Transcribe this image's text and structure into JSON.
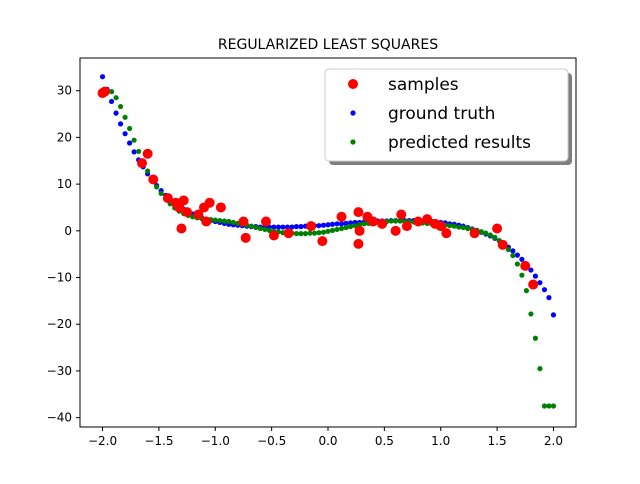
{
  "chart_data": {
    "type": "scatter",
    "title": "REGULARIZED LEAST SQUARES",
    "xlabel": "",
    "ylabel": "",
    "xlim": [
      -2.2,
      2.2
    ],
    "ylim": [
      -42,
      37
    ],
    "x_ticks": [
      -2.0,
      -1.5,
      -1.0,
      -0.5,
      0.0,
      0.5,
      1.0,
      1.5,
      2.0
    ],
    "x_tick_labels": [
      "−2.0",
      "−1.5",
      "−1.0",
      "−0.5",
      "0.0",
      "0.5",
      "1.0",
      "1.5",
      "2.0"
    ],
    "y_ticks": [
      -40,
      -30,
      -20,
      -10,
      0,
      10,
      20,
      30
    ],
    "y_tick_labels": [
      "−40",
      "−30",
      "−20",
      "−10",
      "0",
      "10",
      "20",
      "30"
    ],
    "grid": false,
    "legend": {
      "position": "top-right",
      "shadow": true
    },
    "series": [
      {
        "name": "samples",
        "color": "#ff0000",
        "marker": "large-dot",
        "x": [
          -2.0,
          -1.98,
          -1.65,
          -1.6,
          -1.55,
          -1.42,
          -1.35,
          -1.32,
          -1.28,
          -1.25,
          -1.3,
          -1.15,
          -1.1,
          -1.08,
          -1.05,
          -0.95,
          -0.75,
          -0.73,
          -0.55,
          -0.48,
          -0.35,
          -0.15,
          -0.05,
          0.12,
          0.27,
          0.28,
          0.27,
          0.35,
          0.4,
          0.48,
          0.6,
          0.65,
          0.7,
          0.8,
          0.88,
          0.95,
          1.0,
          1.05,
          1.3,
          1.5,
          1.55,
          1.75,
          1.82
        ],
        "y": [
          29.5,
          29.8,
          14.5,
          16.5,
          11.0,
          7.0,
          6.0,
          5.0,
          6.5,
          4.0,
          0.5,
          3.5,
          5.0,
          2.0,
          6.0,
          5.0,
          2.0,
          -1.5,
          2.0,
          -1.0,
          -0.5,
          1.0,
          -2.2,
          3.0,
          4.0,
          0.0,
          -2.8,
          3.0,
          2.0,
          1.5,
          0.0,
          3.5,
          1.0,
          2.0,
          2.5,
          1.5,
          1.0,
          -0.5,
          -0.5,
          0.5,
          -3.0,
          -7.5,
          -11.5
        ]
      },
      {
        "name": "ground truth",
        "color": "#0000ff",
        "marker": "small-dot",
        "x": [
          -2.0,
          -1.96,
          -1.92,
          -1.88,
          -1.84,
          -1.8,
          -1.76,
          -1.72,
          -1.68,
          -1.64,
          -1.6,
          -1.56,
          -1.52,
          -1.48,
          -1.44,
          -1.4,
          -1.36,
          -1.32,
          -1.28,
          -1.24,
          -1.2,
          -1.16,
          -1.12,
          -1.08,
          -1.04,
          -1.0,
          -0.96,
          -0.92,
          -0.88,
          -0.84,
          -0.8,
          -0.76,
          -0.72,
          -0.68,
          -0.64,
          -0.6,
          -0.56,
          -0.52,
          -0.48,
          -0.44,
          -0.4,
          -0.36,
          -0.32,
          -0.28,
          -0.24,
          -0.2,
          -0.16,
          -0.12,
          -0.08,
          -0.04,
          0.0,
          0.04,
          0.08,
          0.12,
          0.16,
          0.2,
          0.24,
          0.28,
          0.32,
          0.36,
          0.4,
          0.44,
          0.48,
          0.52,
          0.56,
          0.6,
          0.64,
          0.68,
          0.72,
          0.76,
          0.8,
          0.84,
          0.88,
          0.92,
          0.96,
          1.0,
          1.04,
          1.08,
          1.12,
          1.16,
          1.2,
          1.24,
          1.28,
          1.32,
          1.36,
          1.4,
          1.44,
          1.48,
          1.52,
          1.56,
          1.6,
          1.64,
          1.68,
          1.72,
          1.76,
          1.8,
          1.84,
          1.88,
          1.92,
          1.96,
          2.0
        ],
        "y": [
          33.0,
          30.3,
          27.7,
          25.2,
          22.9,
          20.8,
          18.8,
          16.9,
          15.2,
          13.7,
          12.2,
          10.9,
          9.7,
          8.6,
          7.6,
          6.7,
          5.9,
          5.2,
          4.6,
          4.1,
          3.6,
          3.2,
          2.8,
          2.5,
          2.2,
          2.0,
          1.8,
          1.6,
          1.4,
          1.3,
          1.2,
          1.1,
          1.0,
          0.9,
          0.9,
          0.8,
          0.8,
          0.8,
          0.8,
          0.8,
          0.8,
          0.8,
          0.8,
          0.9,
          0.9,
          1.0,
          1.0,
          1.1,
          1.1,
          1.2,
          1.3,
          1.4,
          1.5,
          1.5,
          1.6,
          1.7,
          1.8,
          1.8,
          1.9,
          2.0,
          2.0,
          2.1,
          2.1,
          2.1,
          2.2,
          2.2,
          2.2,
          2.2,
          2.2,
          2.2,
          2.2,
          2.1,
          2.1,
          2.0,
          1.9,
          1.8,
          1.7,
          1.5,
          1.4,
          1.2,
          1.0,
          0.7,
          0.4,
          0.1,
          -0.3,
          -0.7,
          -1.1,
          -1.6,
          -2.2,
          -2.8,
          -3.5,
          -4.3,
          -5.2,
          -6.1,
          -7.2,
          -8.4,
          -9.7,
          -11.1,
          -12.6,
          -14.3,
          -18.0
        ]
      },
      {
        "name": "predicted results",
        "color": "#008000",
        "marker": "small-dot",
        "x": [
          -2.0,
          -1.96,
          -1.92,
          -1.88,
          -1.84,
          -1.8,
          -1.76,
          -1.72,
          -1.68,
          -1.64,
          -1.6,
          -1.56,
          -1.52,
          -1.48,
          -1.44,
          -1.4,
          -1.36,
          -1.32,
          -1.28,
          -1.24,
          -1.2,
          -1.16,
          -1.12,
          -1.08,
          -1.04,
          -1.0,
          -0.96,
          -0.92,
          -0.88,
          -0.84,
          -0.8,
          -0.76,
          -0.72,
          -0.68,
          -0.64,
          -0.6,
          -0.56,
          -0.52,
          -0.48,
          -0.44,
          -0.4,
          -0.36,
          -0.32,
          -0.28,
          -0.24,
          -0.2,
          -0.16,
          -0.12,
          -0.08,
          -0.04,
          0.0,
          0.04,
          0.08,
          0.12,
          0.16,
          0.2,
          0.24,
          0.28,
          0.32,
          0.36,
          0.4,
          0.44,
          0.48,
          0.52,
          0.56,
          0.6,
          0.64,
          0.68,
          0.72,
          0.76,
          0.8,
          0.84,
          0.88,
          0.92,
          0.96,
          1.0,
          1.04,
          1.08,
          1.12,
          1.16,
          1.2,
          1.24,
          1.28,
          1.32,
          1.36,
          1.4,
          1.44,
          1.48,
          1.52,
          1.56,
          1.6,
          1.64,
          1.68,
          1.72,
          1.76,
          1.8,
          1.84,
          1.88,
          1.92,
          1.96,
          2.0
        ],
        "y": [
          29.5,
          30.0,
          29.8,
          28.5,
          26.6,
          24.3,
          21.9,
          19.4,
          17.0,
          14.8,
          12.8,
          11.0,
          9.4,
          8.0,
          6.8,
          5.8,
          4.9,
          4.2,
          3.7,
          3.3,
          3.0,
          2.8,
          2.6,
          2.5,
          2.4,
          2.3,
          2.2,
          2.1,
          2.0,
          1.8,
          1.6,
          1.4,
          1.2,
          1.0,
          0.7,
          0.5,
          0.3,
          0.1,
          -0.1,
          -0.2,
          -0.4,
          -0.5,
          -0.5,
          -0.6,
          -0.6,
          -0.6,
          -0.5,
          -0.5,
          -0.4,
          -0.3,
          -0.1,
          0.1,
          0.3,
          0.5,
          0.7,
          0.9,
          1.1,
          1.3,
          1.5,
          1.6,
          1.8,
          1.9,
          2.0,
          2.0,
          2.1,
          2.1,
          2.1,
          2.0,
          2.0,
          1.9,
          1.8,
          1.7,
          1.6,
          1.5,
          1.4,
          1.3,
          1.2,
          1.1,
          1.0,
          0.8,
          0.7,
          0.5,
          0.3,
          0.1,
          -0.2,
          -0.5,
          -0.9,
          -1.4,
          -2.1,
          -2.9,
          -4.0,
          -5.3,
          -7.1,
          -9.5,
          -12.8,
          -17.8,
          -23.0,
          -29.5,
          -37.5,
          -37.5,
          -37.5
        ]
      }
    ]
  }
}
